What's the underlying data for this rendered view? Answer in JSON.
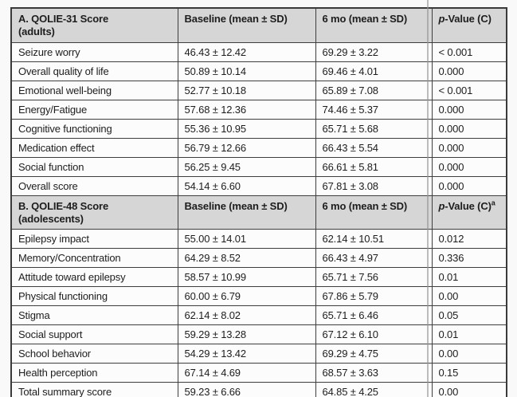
{
  "colors": {
    "header_bg": "#d6d6d6",
    "row_bg": "#fcfcfc",
    "border": "#3e3e3e",
    "text": "#1d1d1d",
    "artifact_line": "#949494"
  },
  "table": {
    "sections": [
      {
        "header": {
          "label_line1": "A. QOLIE-31 Score",
          "label_line2": "(adults)",
          "baseline": "Baseline (mean ± SD)",
          "six_mo": "6 mo (mean ± SD)",
          "p_italic": "p",
          "p_rest": "-Value (C)",
          "p_sup": ""
        },
        "rows": [
          {
            "label": "Seizure worry",
            "baseline": "46.43 ± 12.42",
            "six_mo": "69.29 ± 3.22",
            "p": "< 0.001"
          },
          {
            "label": "Overall quality of life",
            "baseline": "50.89 ± 10.14",
            "six_mo": "69.46 ± 4.01",
            "p": "0.000"
          },
          {
            "label": "Emotional well-being",
            "baseline": "52.77 ± 10.18",
            "six_mo": "65.89 ± 7.08",
            "p": "< 0.001"
          },
          {
            "label": "Energy/Fatigue",
            "baseline": "57.68 ± 12.36",
            "six_mo": "74.46 ± 5.37",
            "p": "0.000"
          },
          {
            "label": "Cognitive functioning",
            "baseline": "55.36 ± 10.95",
            "six_mo": "65.71 ± 5.68",
            "p": "0.000"
          },
          {
            "label": "Medication effect",
            "baseline": "56.79 ± 12.66",
            "six_mo": "66.43 ± 5.54",
            "p": "0.000"
          },
          {
            "label": "Social function",
            "baseline": "56.25 ± 9.45",
            "six_mo": "66.61 ± 5.81",
            "p": "0.000"
          },
          {
            "label": "Overall score",
            "baseline": "54.14 ± 6.60",
            "six_mo": "67.81 ± 3.08",
            "p": "0.000"
          }
        ]
      },
      {
        "header": {
          "label_line1": "B. QOLIE-48 Score",
          "label_line2": "(adolescents)",
          "baseline": "Baseline (mean ± SD)",
          "six_mo": "6 mo (mean ± SD)",
          "p_italic": "p",
          "p_rest": "-Value (C)",
          "p_sup": "a"
        },
        "rows": [
          {
            "label": "Epilepsy impact",
            "baseline": "55.00 ± 14.01",
            "six_mo": "62.14 ± 10.51",
            "p": "0.012"
          },
          {
            "label": "Memory/Concentration",
            "baseline": "64.29 ± 8.52",
            "six_mo": "66.43 ± 4.97",
            "p": "0.336"
          },
          {
            "label": "Attitude toward epilepsy",
            "baseline": "58.57 ± 10.99",
            "six_mo": "65.71 ± 7.56",
            "p": "0.01"
          },
          {
            "label": "Physical functioning",
            "baseline": "60.00 ± 6.79",
            "six_mo": "67.86 ± 5.79",
            "p": "0.00"
          },
          {
            "label": "Stigma",
            "baseline": "62.14 ± 8.02",
            "six_mo": "65.71 ± 6.46",
            "p": "0.05"
          },
          {
            "label": "Social support",
            "baseline": "59.29 ± 13.28",
            "six_mo": "67.12 ± 6.10",
            "p": "0.01"
          },
          {
            "label": "School behavior",
            "baseline": "54.29 ± 13.42",
            "six_mo": "69.29 ± 4.75",
            "p": "0.00"
          },
          {
            "label": "Health perception",
            "baseline": "67.14 ± 4.69",
            "six_mo": "68.57 ± 3.63",
            "p": "0.15"
          },
          {
            "label": "Total summary score",
            "baseline": "59.23 ± 6.66",
            "six_mo": "64.85 ± 4.25",
            "p": "0.00"
          }
        ]
      }
    ]
  }
}
